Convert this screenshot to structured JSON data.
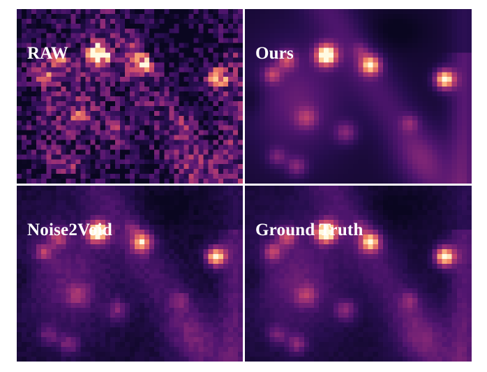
{
  "panels": [
    {
      "key": "raw",
      "label": "RAW"
    },
    {
      "key": "ours",
      "label": "Ours"
    },
    {
      "key": "n2v",
      "label": "Noise2Void"
    },
    {
      "key": "gt",
      "label": "Ground Truth"
    }
  ],
  "colormap": "magma"
}
